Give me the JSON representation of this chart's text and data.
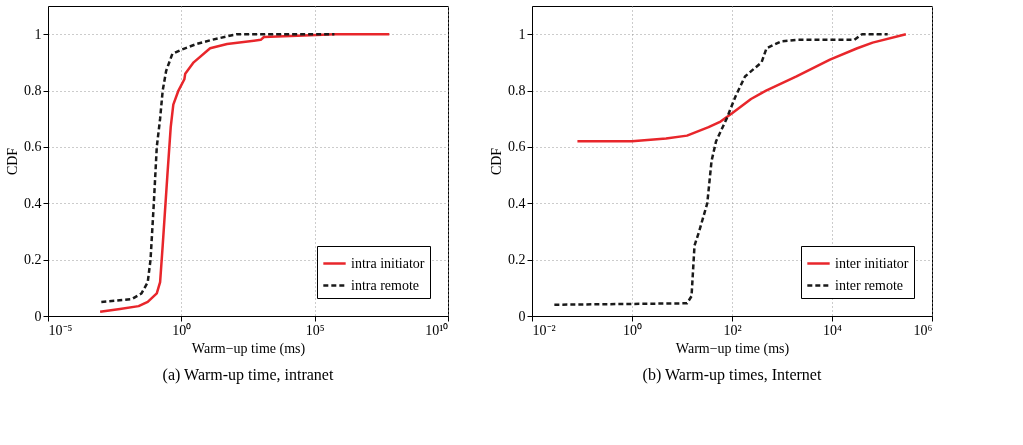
{
  "chart_data": [
    {
      "type": "line",
      "title": "(a) Warm-up time, intranet",
      "xlabel": "Warm−up time (ms)",
      "ylabel": "CDF",
      "log": "x",
      "grid": true,
      "legend": "bottom right",
      "xlim": [
        1e-05,
        10000000000
      ],
      "xticks": [
        {
          "value": 1e-05,
          "label": "10⁻⁵"
        },
        {
          "value": 1,
          "label": "10⁰"
        },
        {
          "value": 100000,
          "label": "10⁵"
        },
        {
          "value": 10000000000,
          "label": "10¹⁰"
        }
      ],
      "ylim": [
        0,
        1.1
      ],
      "yticks": [
        0,
        0.2,
        0.4,
        0.6,
        0.8,
        1
      ],
      "series": [
        {
          "name": "intra initiator",
          "color": "#e8262b",
          "line_style": "solid",
          "x": [
            0.0009,
            0.005,
            0.025,
            0.055,
            0.12,
            0.16,
            0.2,
            0.3,
            0.4,
            0.5,
            0.78,
            1.3,
            1.4,
            2.9,
            12,
            52,
            950,
            1250,
            40000,
            550000,
            63000000
          ],
          "values": [
            0.015,
            0.025,
            0.035,
            0.05,
            0.08,
            0.12,
            0.25,
            0.5,
            0.67,
            0.75,
            0.8,
            0.84,
            0.86,
            0.9,
            0.95,
            0.965,
            0.98,
            0.99,
            0.995,
            1,
            1
          ]
        },
        {
          "name": "intra remote",
          "color": "#1a1a1a",
          "line_style": "dashed",
          "x": [
            0.001,
            0.014,
            0.032,
            0.055,
            0.07,
            0.093,
            0.12,
            0.16,
            0.2,
            0.27,
            0.46,
            1,
            3.7,
            14,
            120,
            550000
          ],
          "values": [
            0.05,
            0.06,
            0.08,
            0.12,
            0.2,
            0.4,
            0.6,
            0.7,
            0.8,
            0.87,
            0.93,
            0.945,
            0.965,
            0.98,
            1,
            1
          ]
        }
      ]
    },
    {
      "type": "line",
      "title": "(b) Warm-up times, Internet",
      "xlabel": "Warm−up time (ms)",
      "ylabel": "CDF",
      "log": "x",
      "grid": true,
      "legend": "bottom right",
      "xlim": [
        0.01,
        1000000
      ],
      "xticks": [
        {
          "value": 0.01,
          "label": "10⁻²"
        },
        {
          "value": 1,
          "label": "10⁰"
        },
        {
          "value": 100,
          "label": "10²"
        },
        {
          "value": 10000,
          "label": "10⁴"
        },
        {
          "value": 1000000,
          "label": "10⁶"
        }
      ],
      "ylim": [
        0,
        1.1
      ],
      "yticks": [
        0,
        0.2,
        0.4,
        0.6,
        0.8,
        1
      ],
      "series": [
        {
          "name": "inter initiator",
          "color": "#e8262b",
          "line_style": "solid",
          "x": [
            0.081,
            1,
            4.8,
            12.6,
            34,
            59,
            102,
            240,
            480,
            1950,
            9100,
            32000,
            65000,
            300000
          ],
          "values": [
            0.62,
            0.62,
            0.63,
            0.64,
            0.67,
            0.69,
            0.72,
            0.77,
            0.8,
            0.85,
            0.91,
            0.95,
            0.97,
            1
          ]
        },
        {
          "name": "inter remote",
          "color": "#1a1a1a",
          "line_style": "dashed",
          "x": [
            0.028,
            12.6,
            15.5,
            17.8,
            22,
            32,
            39,
            48,
            78,
            118,
            182,
            390,
            490,
            980,
            1950,
            28000,
            40000,
            130000
          ],
          "values": [
            0.04,
            0.045,
            0.07,
            0.25,
            0.3,
            0.4,
            0.55,
            0.62,
            0.7,
            0.78,
            0.85,
            0.9,
            0.95,
            0.975,
            0.98,
            0.98,
            1,
            1
          ]
        }
      ]
    }
  ]
}
